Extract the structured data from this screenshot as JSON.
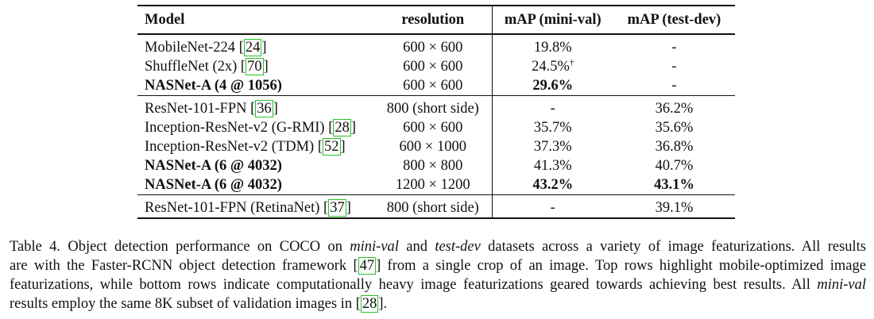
{
  "table": {
    "headers": {
      "model": "Model",
      "resolution": "resolution",
      "mini_val": "mAP (mini-val)",
      "test_dev": "mAP (test-dev)"
    },
    "groups": [
      [
        {
          "model": "MobileNet-224 ",
          "ref": "24",
          "resolution": "600 × 600",
          "mini_val": "19.8%",
          "test_dev": "-",
          "bold": false
        },
        {
          "model": "ShuffleNet (2x) ",
          "ref": "70",
          "resolution": "600 × 600",
          "mini_val": "24.5%",
          "mini_val_sup": "†",
          "test_dev": "-",
          "bold": false
        },
        {
          "model": "NASNet-A (4 @ 1056)",
          "ref": "",
          "resolution": "600 × 600",
          "mini_val": "29.6%",
          "test_dev": "-",
          "bold": true
        }
      ],
      [
        {
          "model": "ResNet-101-FPN ",
          "ref": "36",
          "resolution": "800 (short side)",
          "mini_val": "-",
          "test_dev": "36.2%",
          "bold": false
        },
        {
          "model": "Inception-ResNet-v2 (G-RMI) ",
          "ref": "28",
          "resolution": "600 × 600",
          "mini_val": "35.7%",
          "test_dev": "35.6%",
          "bold": false
        },
        {
          "model": "Inception-ResNet-v2 (TDM) ",
          "ref": "52",
          "resolution": "600 × 1000",
          "mini_val": "37.3%",
          "test_dev": "36.8%",
          "bold": false
        },
        {
          "model": "NASNet-A (6 @ 4032)",
          "ref": "",
          "resolution": "800 × 800",
          "mini_val": "41.3%",
          "test_dev": "40.7%",
          "bold": true
        },
        {
          "model": "NASNet-A (6 @ 4032)",
          "ref": "",
          "resolution": "1200 × 1200",
          "mini_val": "43.2%",
          "test_dev": "43.1%",
          "bold": true,
          "bold_values": true
        }
      ],
      [
        {
          "model": "ResNet-101-FPN (RetinaNet) ",
          "ref": "37",
          "resolution": "800 (short side)",
          "mini_val": "-",
          "test_dev": "39.1%",
          "bold": false
        }
      ]
    ]
  },
  "caption": {
    "l1_a": "Table 4. Object detection performance on COCO on ",
    "l1_i1": "mini-val",
    "l1_b": " and ",
    "l1_i2": "test-dev",
    "l1_c": " datasets across a variety of image featurizations.  All results",
    "l2_a": "are with the Faster-RCNN object detection framework ",
    "l2_ref": "47",
    "l2_b": " from a single crop of an image.  Top rows highlight mobile-optimized image",
    "l3": "featurizations, while bottom rows indicate computationally heavy image featurizations geared towards achieving best results.  All ",
    "l3_i": "mini-val",
    "l4_a": "results employ the same 8K subset of validation images in ",
    "l4_ref": "28",
    "l4_b": "."
  }
}
